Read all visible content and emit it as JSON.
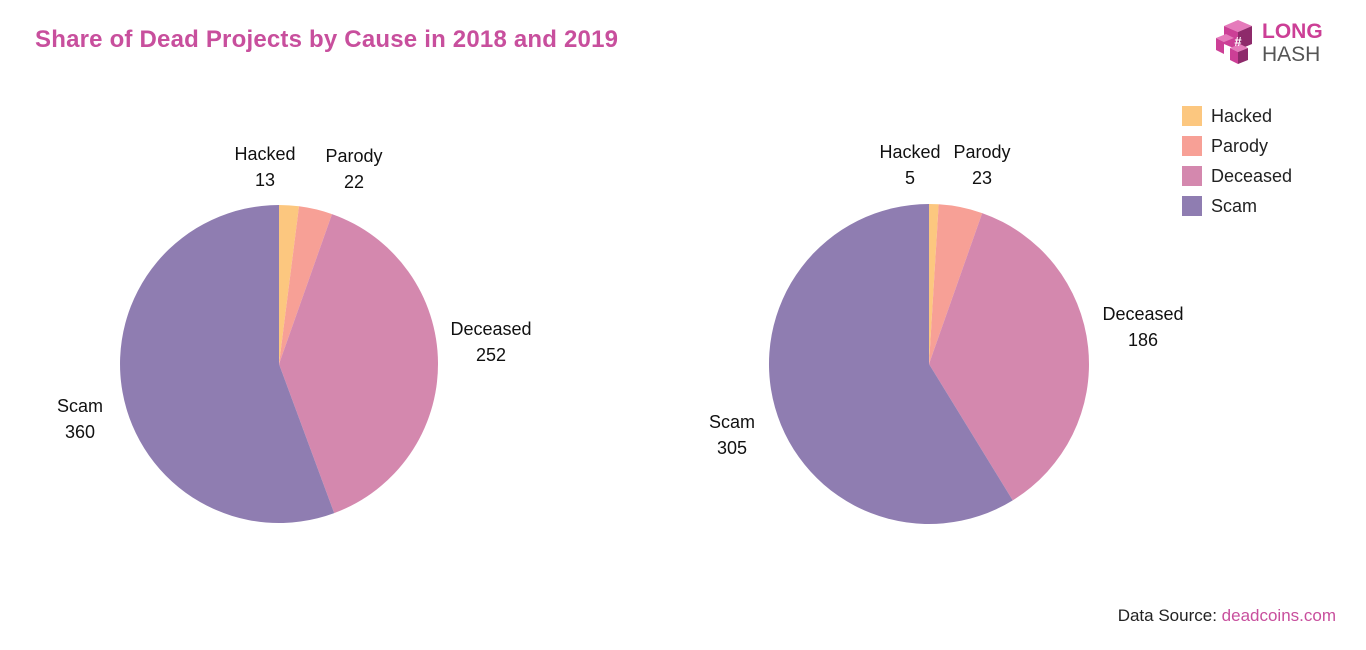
{
  "title": "Share of Dead Projects by Cause in 2018 and 2019",
  "logo": {
    "line1": "LONG",
    "line2": "HASH",
    "color": "#cc3f96"
  },
  "colors": {
    "title": "#c84f9d",
    "link": "#c84f9d",
    "logo_text": "#cc3f96",
    "logo_text2": "#555555"
  },
  "legend": [
    {
      "label": "Hacked",
      "color": "#fcc77f"
    },
    {
      "label": "Parody",
      "color": "#f7a096"
    },
    {
      "label": "Deceased",
      "color": "#d488ae"
    },
    {
      "label": "Scam",
      "color": "#8f7db1"
    }
  ],
  "source": {
    "prefix": "Data Source: ",
    "link_text": "deadcoins.com"
  },
  "chart_data": [
    {
      "type": "pie",
      "slices": [
        {
          "label": "Hacked",
          "value": 13
        },
        {
          "label": "Parody",
          "value": 22
        },
        {
          "label": "Deceased",
          "value": 252
        },
        {
          "label": "Scam",
          "value": 360
        }
      ]
    },
    {
      "type": "pie",
      "slices": [
        {
          "label": "Hacked",
          "value": 5
        },
        {
          "label": "Parody",
          "value": 23
        },
        {
          "label": "Deceased",
          "value": 186
        },
        {
          "label": "Scam",
          "value": 305
        }
      ]
    }
  ]
}
